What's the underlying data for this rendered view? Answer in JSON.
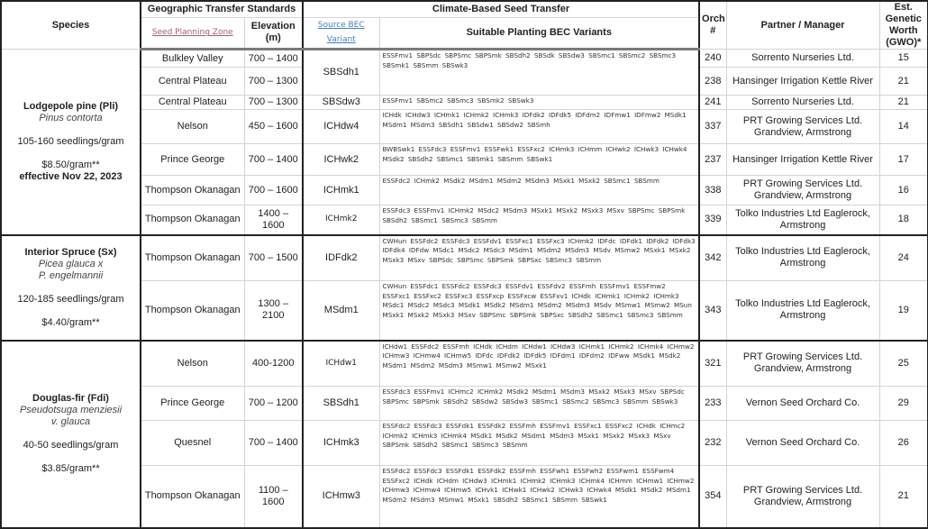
{
  "header": {
    "species": "Species",
    "geographic": "Geographic Transfer Standards",
    "climate": "Climate-Based Seed Transfer",
    "seed_planning_zone": "Seed Planning Zone",
    "elevation": "Elevation (m)",
    "source_bec": "Source BEC Variant",
    "suitable": "Suitable Planting BEC Variants",
    "orch": "Orch #",
    "partner": "Partner / Manager",
    "worth": "Est. Genetic Worth (GWO)*"
  },
  "groups": [
    {
      "name": "Lodgepole pine (Pli)",
      "latin": [
        "Pinus contorta"
      ],
      "seedlings": "105-160 seedlings/gram",
      "price": "$8.50/gram**",
      "effective": "effective Nov 22, 2023",
      "rows": [
        {
          "zone": "Bulkley Valley",
          "elev": "700 – 1400",
          "source": "SBSdh1",
          "suitable": "ESSFmv1 SBPSdc SBPSmc SBPSmk SBSdh2 SBSdk SBSdw3 SBSmc1 SBSmc2 SBSmc3 SBSmk1 SBSmm SBSwk3",
          "orch": "240",
          "partner": "Sorrento Nurseries Ltd.",
          "worth": "15"
        },
        {
          "zone": "Central Plateau",
          "elev": "700 – 1300",
          "source": null,
          "suitable": null,
          "orch": "238",
          "partner": "Hansinger Irrigation Kettle River",
          "worth": "21"
        },
        {
          "zone": "Central Plateau",
          "elev": "700 – 1300",
          "source": "SBSdw3",
          "suitable": "ESSFmv1 SBSmc2 SBSmc3 SBSmk2 SBSwk3",
          "orch": "241",
          "partner": "Sorrento Nurseries Ltd.",
          "worth": "21"
        },
        {
          "zone": "Nelson",
          "elev": "450 – 1600",
          "source": "ICHdw4",
          "suitable": "ICHdk ICHdw3 ICHmk1 ICHmk2 ICHmk3 IDFdk2 IDFdk5 IDFdm2 IDFmw1 IDFmw2 MSdk1 MSdm1 MSdm3 SBSdh1 SBSdw1 SBSdw2 SBSmh",
          "orch": "337",
          "partner": "PRT Growing Services Ltd. Grandview, Armstrong",
          "worth": "14"
        },
        {
          "zone": "Prince George",
          "elev": "700 – 1400",
          "source": "ICHwk2",
          "suitable": "BWBSwk1 ESSFdc3 ESSFmv1 ESSFwk1 ESSFxc2 ICHmk3 ICHmm ICHwk2 ICHwk3 ICHwk4 MSdk2 SBSdh2 SBSmc1 SBSmk1 SBSmm SBSwk1",
          "orch": "237",
          "partner": "Hansinger Irrigation Kettle River",
          "worth": "17"
        },
        {
          "zone": "Thompson Okanagan",
          "elev": "700 – 1600",
          "source": "ICHmk1",
          "suitable": "ESSFdc2 ICHmk2 MSdk2 MSdm1 MSdm2 MSdm3 MSxk1 MSxk2 SBSmc1 SBSmm",
          "orch": "338",
          "partner": "PRT Growing Services Ltd. Grandview, Armstrong",
          "worth": "16"
        },
        {
          "zone": "Thompson Okanagan",
          "elev": "1400 – 1600",
          "source": "ICHmk2",
          "suitable": "ESSFdc3 ESSFmv1 ICHmk2 MSdc2 MSdm3 MSxk1 MSxk2 MSxk3 MSxv SBPSmc SBPSmk SBSdh2 SBSmc1 SBSmc3 SBSmm",
          "orch": "339",
          "partner": "Tolko Industries Ltd Eaglerock, Armstrong",
          "worth": "18"
        }
      ]
    },
    {
      "name": "Interior Spruce (Sx)",
      "latin": [
        "Picea glauca x",
        "P. engelmannii"
      ],
      "seedlings": "120-185 seedlings/gram",
      "price": "$4.40/gram**",
      "rows": [
        {
          "zone": "Thompson Okanagan",
          "elev": "700 – 1500",
          "source": "IDFdk2",
          "suitable": "CWHun ESSFdc2 ESSFdc3 ESSFdv1 ESSFxc1 ESSFxc3 ICHmk2 IDFdc IDFdk1 IDFdk2 IDFdk3 IDFdk4 IDFdw MSdc1 MSdc2 MSdc3 MSdm1 MSdm2 MSdm3 MSdv MSmw2 MSxk1 MSxk2 MSxk3 MSxv SBPSdc SBPSmc SBPSmk SBPSxc SBSmc3 SBSmm",
          "orch": "342",
          "partner": "Tolko Industries Ltd Eaglerock, Armstrong",
          "worth": "24"
        },
        {
          "zone": "Thompson Okanagan",
          "elev": "1300 – 2100",
          "source": "MSdm1",
          "suitable": "CWHun ESSFdc1 ESSFdc2 ESSFdc3 ESSFdv1 ESSFdv2 ESSFmh ESSFmv1 ESSFmw2 ESSFxc1 ESSFxc2 ESSFxc3 ESSFxcp ESSFxcw ESSFxv1 ICHdk ICHmk1 ICHmk2 ICHmk3 MSdc1 MSdc2 MSdc3 MSdk1 MSdk2 MSdm1 MSdm2 MSdm3 MSdv MSmw1 MSmw2 MSun MSxk1 MSxk2 MSxk3 MSxv SBPSmc SBPSmk SBPSxc SBSdh2 SBSmc1 SBSmc3 SBSmm",
          "orch": "343",
          "partner": "Tolko Industries Ltd Eaglerock, Armstrong",
          "worth": "19"
        }
      ]
    },
    {
      "name": "Douglas-fir (Fdi)",
      "latin": [
        "Pseudotsuga menziesii",
        "v. glauca"
      ],
      "seedlings": "40-50 seedlings/gram",
      "price": "$3.85/gram**",
      "rows": [
        {
          "zone": "Nelson",
          "elev": "400-1200",
          "source": "ICHdw1",
          "suitable": "ICHdw1 ESSFdc2 ESSFmh ICHdk ICHdm ICHdw1 ICHdw3 ICHmk1 ICHmk2 ICHmk4 ICHmw2 ICHmw3 ICHmw4 ICHmw5 IDFdc IDFdk2 IDFdk5 IDFdm1 IDFdm2 IDFww MSdk1 MSdk2 MSdm1 MSdm2 MSdm3 MSmw1 MSmw2 MSxk1",
          "orch": "321",
          "partner": "PRT Growing Services Ltd. Grandview, Armstrong",
          "worth": "25"
        },
        {
          "zone": "Prince George",
          "elev": "700 – 1200",
          "source": "SBSdh1",
          "suitable": "ESSFdc3 ESSFmv1 ICHmc2 ICHmk2 MSdk2 MSdm1 MSdm3 MSxk2 MSxk3 MSxv SBPSdc SBPSmc SBPSmk SBSdh2 SBSdw2 SBSdw3 SBSmc1 SBSmc2 SBSmc3 SBSmm SBSwk3",
          "orch": "233",
          "partner": "Vernon Seed Orchard Co.",
          "worth": "29"
        },
        {
          "zone": "Quesnel",
          "elev": "700 – 1400",
          "source": "ICHmk3",
          "suitable": "ESSFdc2 ESSFdc3 ESSFdk1 ESSFdk2 ESSFmh ESSFmv1 ESSFxc1 ESSFxc2 ICHdk ICHmc2 ICHmk2 ICHmk3 ICHmk4 MSdk1 MSdk2 MSdm1 MSdm3 MSxk1 MSxk2 MSxk3 MSxv SBPSmk SBSdh2 SBSmc1 SBSmc3 SBSmm",
          "orch": "232",
          "partner": "Vernon Seed Orchard Co.",
          "worth": "26"
        },
        {
          "zone": "Thompson Okanagan",
          "elev": "1100 – 1600",
          "source": "ICHmw3",
          "suitable": "ESSFdc2 ESSFdc3 ESSFdk1 ESSFdk2 ESSFmh ESSFwh1 ESSFwh2 ESSFwm1 ESSFwm4 ESSFxc2 ICHdk ICHdm ICHdw3 ICHmk1 ICHmk2 ICHmk3 ICHmk4 ICHmm ICHmw1 ICHmw2 ICHmw3 ICHmw4 ICHmw5 ICHvk1 ICHwk1 ICHwk2 ICHwk3 ICHwk4 MSdk1 MSdk2 MSdm1 MSdm2 MSdm3 MSmw1 MSxk1 SBSdh2 SBSmc1 SBSmm SBSwk1",
          "orch": "354",
          "partner": "PRT Growing Services Ltd. Grandview, Armstrong",
          "worth": "21"
        }
      ]
    }
  ]
}
